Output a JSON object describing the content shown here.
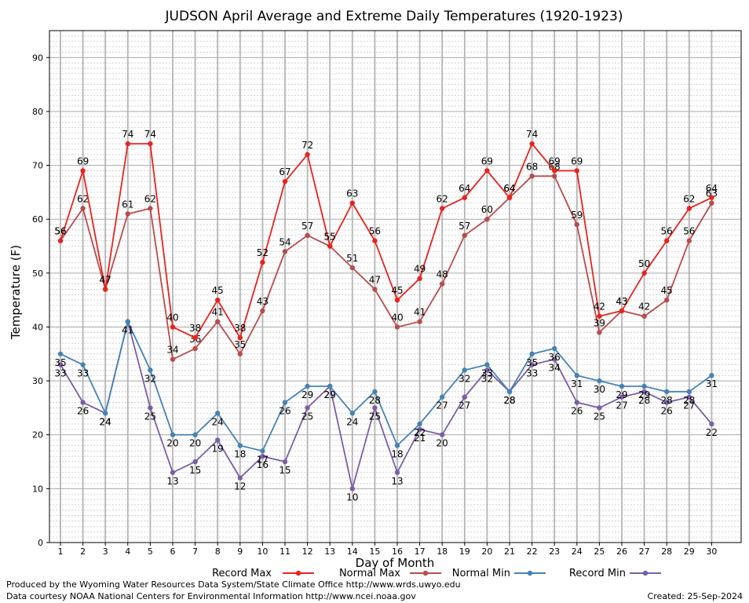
{
  "chart_data": {
    "type": "line",
    "title": "JUDSON April Average and Extreme Daily Temperatures (1920-1923)",
    "xlabel": "Day of Month",
    "ylabel": "Temperature (F)",
    "ylim": [
      0,
      95
    ],
    "yticks": [
      0,
      10,
      20,
      30,
      40,
      50,
      60,
      70,
      80,
      90
    ],
    "categories": [
      "1",
      "2",
      "3",
      "4",
      "5",
      "6",
      "7",
      "8",
      "9",
      "10",
      "11",
      "12",
      "13",
      "14",
      "15",
      "16",
      "17",
      "18",
      "19",
      "20",
      "21",
      "22",
      "23",
      "24",
      "25",
      "26",
      "27",
      "28",
      "29",
      "30"
    ],
    "grid": true,
    "legend_position": "bottom",
    "series": [
      {
        "name": "Record Max",
        "color": "#e8231e",
        "values": [
          56,
          69,
          47,
          74,
          74,
          40,
          38,
          45,
          38,
          52,
          67,
          72,
          55,
          63,
          56,
          45,
          49,
          62,
          64,
          69,
          64,
          74,
          69,
          69,
          42,
          43,
          50,
          56,
          62,
          64
        ]
      },
      {
        "name": "Normal Max",
        "color": "#b84c4c",
        "values": [
          56,
          62,
          47,
          61,
          62,
          34,
          36,
          41,
          35,
          43,
          54,
          57,
          55,
          51,
          47,
          40,
          41,
          48,
          57,
          60,
          64,
          68,
          68,
          59,
          39,
          43,
          42,
          45,
          56,
          63
        ]
      },
      {
        "name": "Normal Min",
        "color": "#4682b4",
        "values": [
          35,
          33,
          24,
          41,
          32,
          20,
          20,
          24,
          18,
          17,
          26,
          29,
          29,
          24,
          28,
          18,
          22,
          27,
          32,
          33,
          28,
          35,
          36,
          31,
          30,
          29,
          29,
          28,
          28,
          31
        ]
      },
      {
        "name": "Record Min",
        "color": "#7b5ea7",
        "values": [
          33,
          26,
          24,
          41,
          25,
          13,
          15,
          19,
          12,
          16,
          15,
          25,
          29,
          10,
          25,
          13,
          21,
          20,
          27,
          32,
          28,
          33,
          34,
          26,
          25,
          27,
          28,
          26,
          27,
          22
        ]
      }
    ]
  },
  "credits": {
    "line1": "Produced by the Wyoming Water Resources Data System/State Climate Office http://www.wrds.uwyo.edu",
    "line2": "Data courtesy NOAA National Centers for Environmental Information http://www.ncei.noaa.gov",
    "created": "Created:  25-Sep-2024"
  }
}
